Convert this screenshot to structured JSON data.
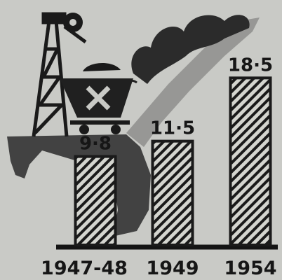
{
  "chart_data": {
    "type": "bar",
    "categories": [
      "1947-48",
      "1949",
      "1954"
    ],
    "values": [
      9.8,
      11.5,
      18.5
    ],
    "value_labels": [
      "9·8",
      "11·5",
      "18·5"
    ],
    "color": "#1a1a1a"
  }
}
